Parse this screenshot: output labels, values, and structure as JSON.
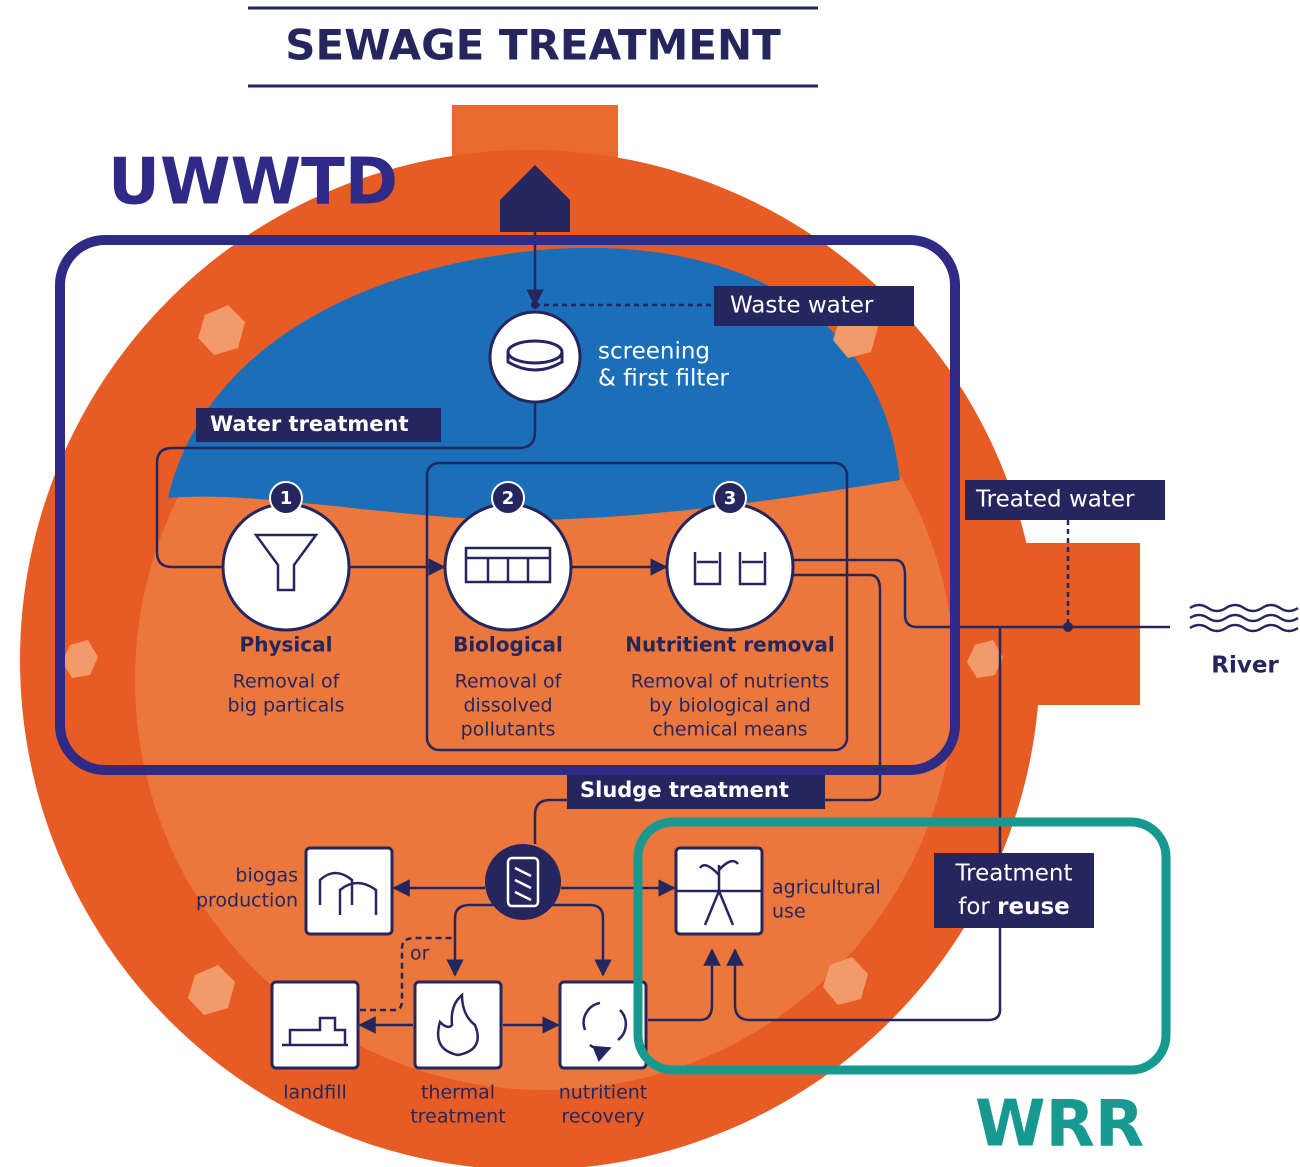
{
  "header": {
    "title": "SEWAGE TREATMENT"
  },
  "annotations": {
    "uwwtd": "UWWTD",
    "wrr": "WRR"
  },
  "tags": {
    "waste_water": "Waste water",
    "water_treatment": "Water treatment",
    "treated_water": "Treated water",
    "sludge_treatment": "Sludge treatment",
    "reuse": {
      "line1": "Treatment",
      "line2_prefix": "for",
      "line2_bold": "reuse"
    }
  },
  "screening": {
    "lines": [
      "screening",
      "& first filter"
    ]
  },
  "steps": [
    {
      "number": "1",
      "name": "Physical",
      "desc": [
        "Removal of",
        "big particals"
      ]
    },
    {
      "number": "2",
      "name": "Biological",
      "desc": [
        "Removal of",
        "dissolved",
        "pollutants"
      ]
    },
    {
      "number": "3",
      "name": "Nutritient removal",
      "desc": [
        "Removal of nutrients",
        "by biological and",
        "chemical means"
      ]
    }
  ],
  "river": "River",
  "sludge": {
    "biogas": [
      "biogas",
      "production"
    ],
    "agricultural": [
      "agricultural",
      "use"
    ],
    "landfill": [
      "landfill"
    ],
    "thermal": [
      "thermal",
      "treatment"
    ],
    "nutrient": [
      "nutritient",
      "recovery"
    ],
    "or": "or"
  }
}
